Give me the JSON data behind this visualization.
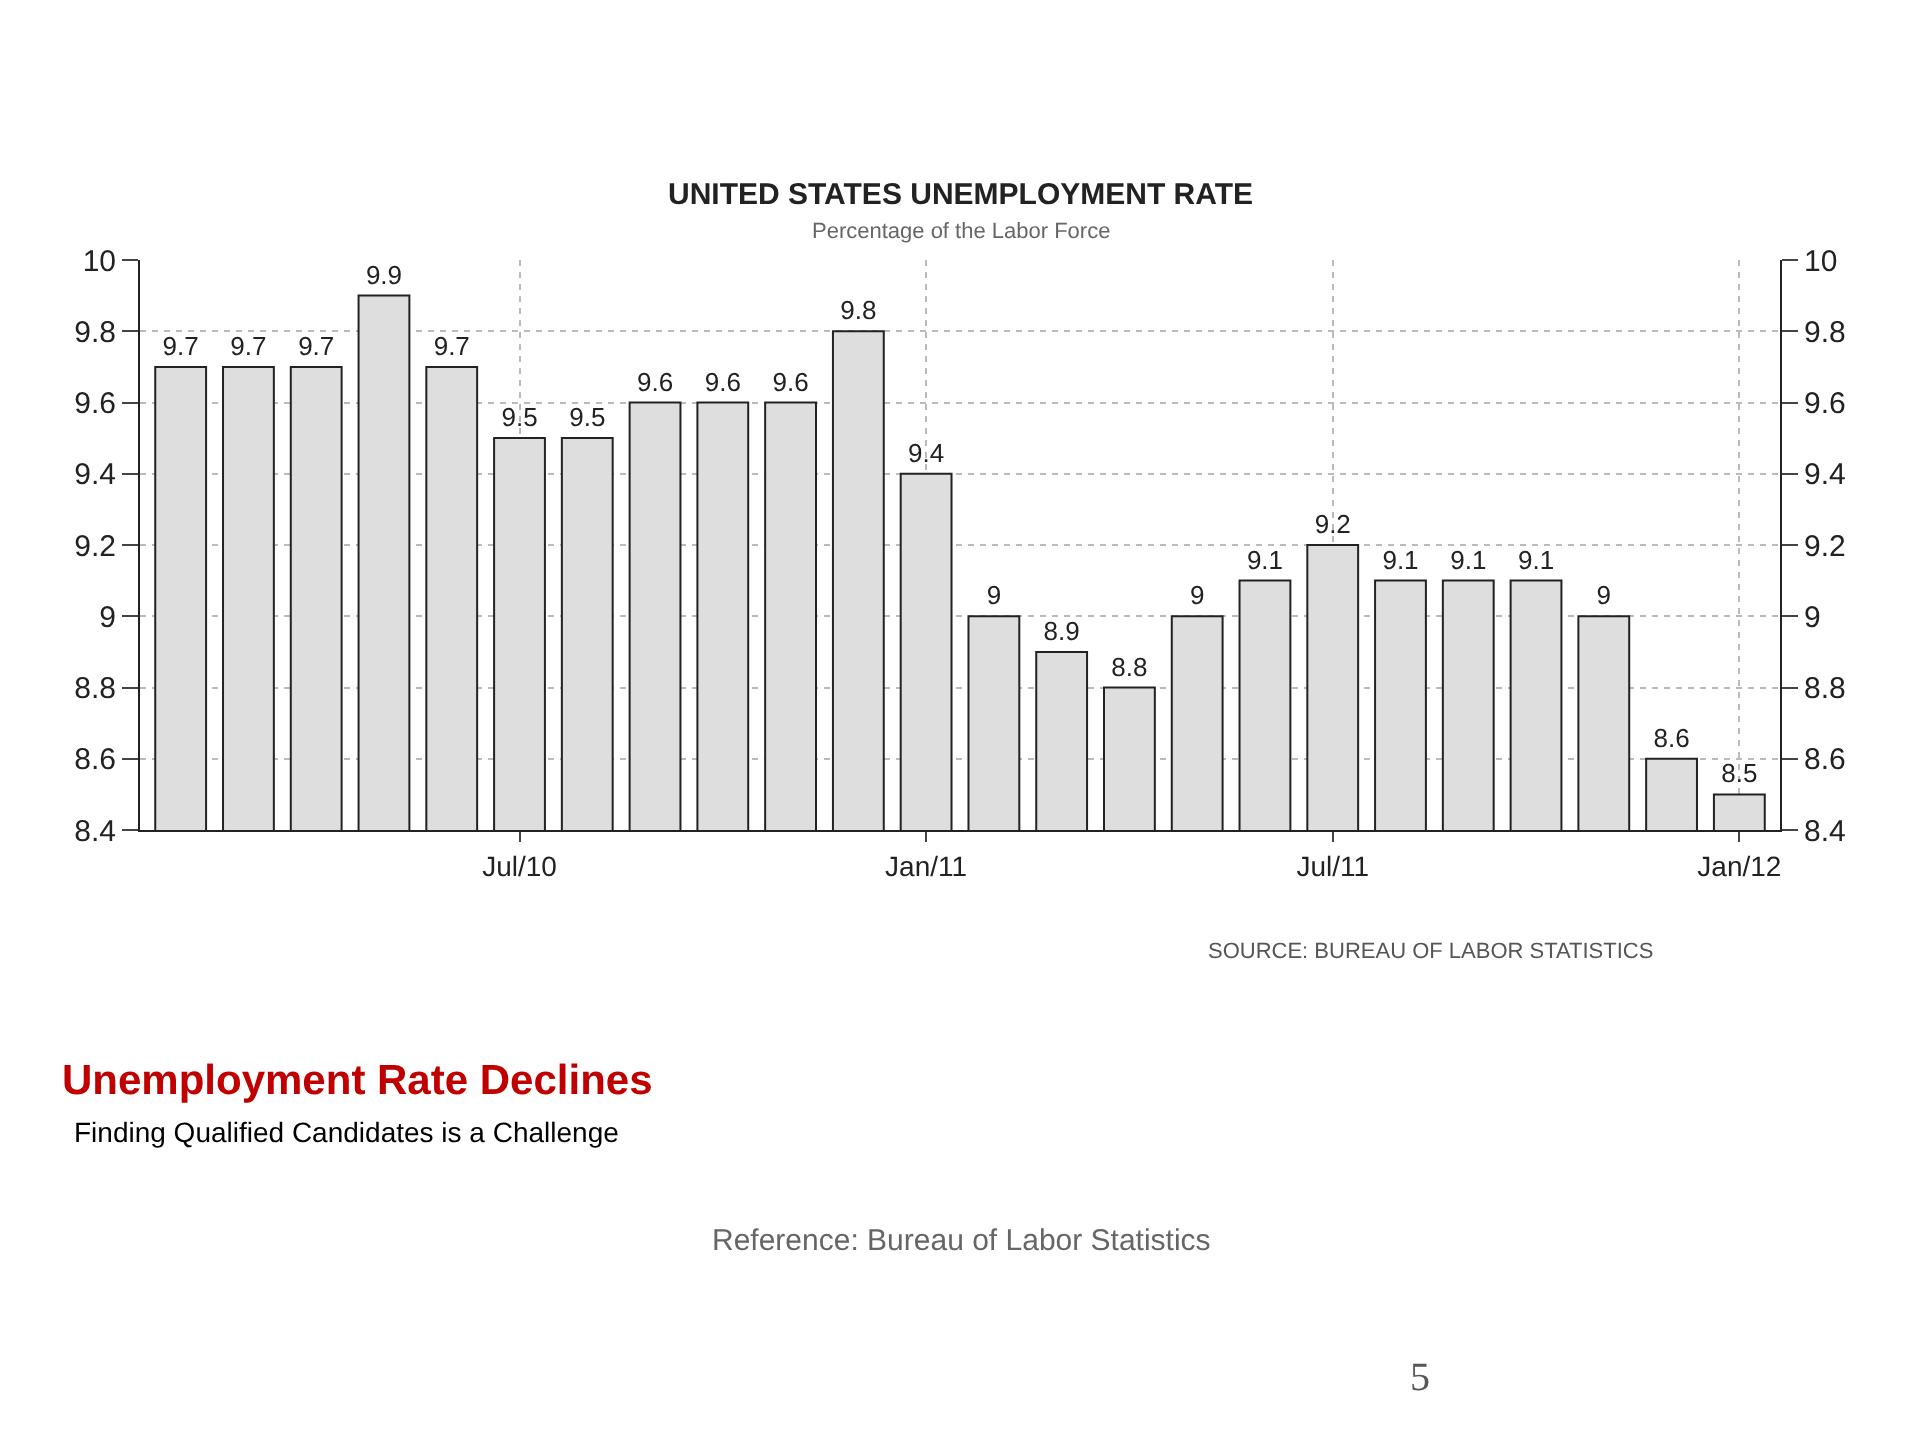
{
  "chart_data": {
    "type": "bar",
    "title": "UNITED STATES UNEMPLOYMENT RATE",
    "subtitle": "Percentage of the Labor Force",
    "categories": [
      null,
      null,
      null,
      null,
      null,
      "Jul/10",
      null,
      null,
      null,
      null,
      null,
      "Jan/11",
      null,
      null,
      null,
      null,
      null,
      "Jul/11",
      null,
      null,
      null,
      null,
      null,
      "Jan/12"
    ],
    "values": [
      9.7,
      9.7,
      9.7,
      9.9,
      9.7,
      9.5,
      9.5,
      9.6,
      9.6,
      9.6,
      9.8,
      9.4,
      9.0,
      8.9,
      8.8,
      9.0,
      9.1,
      9.2,
      9.1,
      9.1,
      9.1,
      9.0,
      8.6,
      8.5
    ],
    "value_labels": [
      "9.7",
      "9.7",
      "9.7",
      "9.9",
      "9.7",
      "9.5",
      "9.5",
      "9.6",
      "9.6",
      "9.6",
      "9.8",
      "9.4",
      "9",
      "8.9",
      "8.8",
      "9",
      "9.1",
      "9.2",
      "9.1",
      "9.1",
      "9.1",
      "9",
      "8.6",
      "8.5"
    ],
    "color": "#dedede",
    "ylim": [
      8.4,
      10
    ],
    "yticks": [
      8.4,
      8.6,
      8.8,
      9,
      9.2,
      9.4,
      9.6,
      9.8,
      10
    ],
    "y2lim": [
      8.4,
      10
    ],
    "y2ticks": [
      8.4,
      8.6,
      8.8,
      9,
      9.2,
      9.4,
      9.6,
      9.8,
      10
    ],
    "grid": true,
    "annotations": [
      "SOURCE: BUREAU OF LABOR STATISTICS",
      "Unemployment Rate Declines",
      "Finding Qualified Candidates is a Challenge",
      "Reference: Bureau of Labor Statistics",
      "5"
    ]
  }
}
